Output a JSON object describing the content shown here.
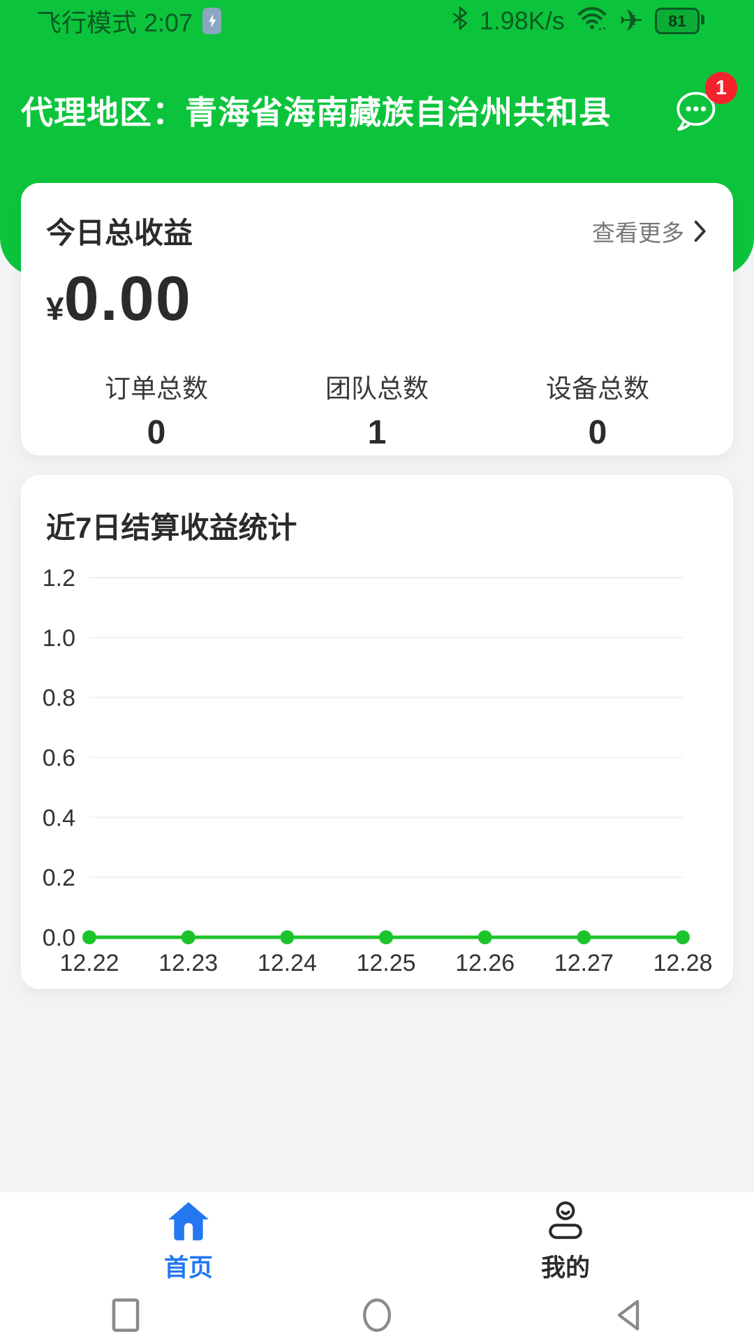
{
  "status_bar": {
    "left_text": "飞行模式 2:07",
    "network_speed": "1.98K/s",
    "battery_percent": "81",
    "plane_glyph": "✈",
    "icons": [
      "battery-charging-icon",
      "bluetooth-icon",
      "wifi-icon",
      "airplane-icon",
      "battery-level-icon"
    ]
  },
  "header": {
    "agent_area_label": "代理地区：青海省海南藏族自治州共和县",
    "message_badge_count": "1",
    "message_icon": "chat-bubble-icon"
  },
  "income_card": {
    "title": "今日总收益",
    "view_more_label": "查看更多",
    "currency_symbol": "¥",
    "amount": "0.00",
    "stats": [
      {
        "label": "订单总数",
        "value": "0"
      },
      {
        "label": "团队总数",
        "value": "1"
      },
      {
        "label": "设备总数",
        "value": "0"
      }
    ]
  },
  "chart_card": {
    "title": "近7日结算收益统计"
  },
  "chart_data": {
    "type": "line",
    "title": "近7日结算收益统计",
    "categories": [
      "12.22",
      "12.23",
      "12.24",
      "12.25",
      "12.26",
      "12.27",
      "12.28"
    ],
    "values": [
      0,
      0,
      0,
      0,
      0,
      0,
      0
    ],
    "xlabel": "",
    "ylabel": "",
    "ylim": [
      0,
      1.2
    ],
    "yticks": [
      0.0,
      0.2,
      0.4,
      0.6,
      0.8,
      1.0,
      1.2
    ],
    "ytick_labels": [
      "0.0",
      "0.2",
      "0.4",
      "0.6",
      "0.8",
      "1.0",
      "1.2"
    ],
    "grid": true,
    "legend": "none",
    "line_color": "#1cc42c",
    "grid_color": "#f0f0f1",
    "label_color": "#333333"
  },
  "tab_bar": {
    "items": [
      {
        "label": "首页",
        "icon": "home-icon",
        "active": true
      },
      {
        "label": "我的",
        "icon": "person-icon",
        "active": false
      }
    ],
    "active_color": "#2477f0",
    "inactive_color": "#2b2b2b"
  },
  "android_nav": {
    "icons": [
      "recents-square-icon",
      "home-circle-icon",
      "back-triangle-icon"
    ]
  },
  "colors": {
    "header_green": "#0cc43c",
    "badge_red": "#f5222d",
    "accent_blue": "#2477f0",
    "page_background": "#f2f3f5",
    "card_background": "#ffffff"
  }
}
